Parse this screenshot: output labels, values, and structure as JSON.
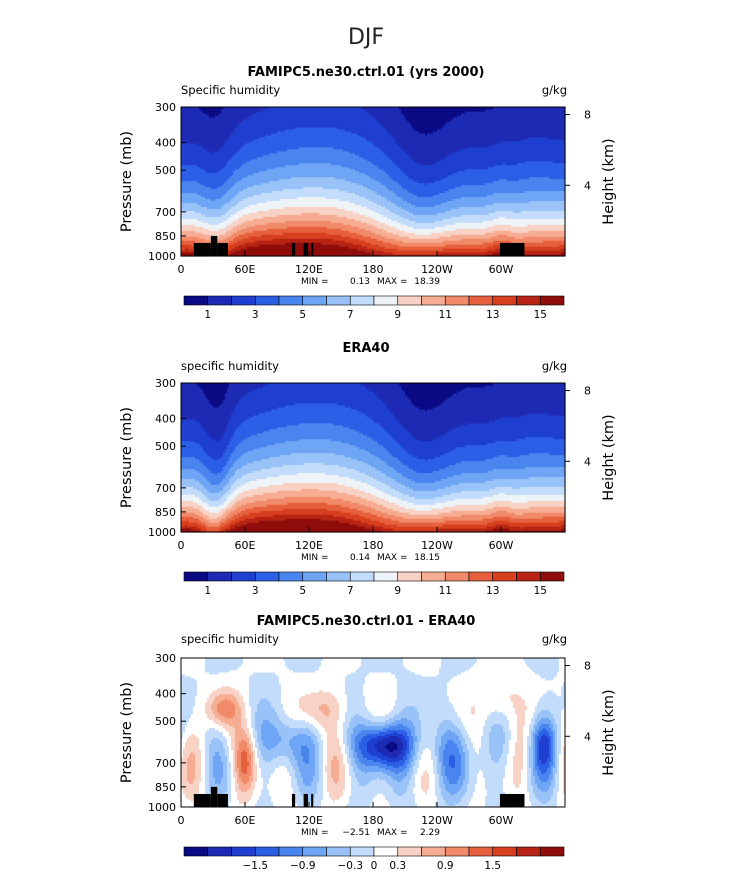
{
  "title": "DJF",
  "colors": {
    "sequential": [
      "#0a0a85",
      "#1c2ab4",
      "#1f3fd0",
      "#2b5fe6",
      "#4a84ef",
      "#6fa5f5",
      "#98c2f8",
      "#c3dcfb",
      "#eef3f8",
      "#f8d2c4",
      "#f6ad93",
      "#f08a68",
      "#e7603d",
      "#d6401f",
      "#b72414",
      "#8f0d0a"
    ],
    "diverging": [
      "#0a0a85",
      "#1c2ab4",
      "#1f3fd0",
      "#2b5fe6",
      "#4a84ef",
      "#6fa5f5",
      "#98c2f8",
      "#c3dcfb",
      "#ffffff",
      "#f8d2c4",
      "#f6ad93",
      "#f08a68",
      "#e7603d",
      "#d6401f",
      "#b72414",
      "#8f0d0a"
    ],
    "topography": "#000000"
  },
  "chart_data": [
    {
      "type": "heatmap",
      "title": "FAMIPC5.ne30.ctrl.01 (yrs 2000)",
      "left_label": "Specific humidity",
      "units": "g/kg",
      "ylabel": "Pressure (mb)",
      "ylabel_right": "Height (km)",
      "xticks": [
        "0",
        "60E",
        "120E",
        "180",
        "120W",
        "60W"
      ],
      "yticks": [
        "300",
        "400",
        "500",
        "700",
        "850",
        "1000"
      ],
      "yticks_right": [
        "8",
        "4"
      ],
      "min_label": "MIN =",
      "min_value": "0.13",
      "max_label": "MAX =",
      "max_value": "18.39",
      "colorbar_labels": [
        "1",
        "3",
        "5",
        "7",
        "9",
        "11",
        "13",
        "15"
      ],
      "levels": [
        1,
        2,
        3,
        4,
        5,
        6,
        7,
        8,
        9,
        10,
        11,
        12,
        13,
        14,
        15
      ],
      "xlim": [
        0,
        360
      ],
      "ylim": [
        1000,
        300
      ],
      "palette": "sequential",
      "field": "climatology",
      "topography": true
    },
    {
      "type": "heatmap",
      "title": "ERA40",
      "left_label": "specific humidity",
      "units": "g/kg",
      "ylabel": "Pressure (mb)",
      "ylabel_right": "Height (km)",
      "xticks": [
        "0",
        "60E",
        "120E",
        "180",
        "120W",
        "60W"
      ],
      "yticks": [
        "300",
        "400",
        "500",
        "700",
        "850",
        "1000"
      ],
      "yticks_right": [
        "8",
        "4"
      ],
      "min_label": "MIN =",
      "min_value": "0.14",
      "max_label": "MAX =",
      "max_value": "18.15",
      "colorbar_labels": [
        "1",
        "3",
        "5",
        "7",
        "9",
        "11",
        "13",
        "15"
      ],
      "levels": [
        1,
        2,
        3,
        4,
        5,
        6,
        7,
        8,
        9,
        10,
        11,
        12,
        13,
        14,
        15
      ],
      "xlim": [
        0,
        360
      ],
      "ylim": [
        1000,
        300
      ],
      "palette": "sequential",
      "field": "climatology",
      "topography": false
    },
    {
      "type": "heatmap",
      "title": "FAMIPC5.ne30.ctrl.01 - ERA40",
      "left_label": "specific humidity",
      "units": "g/kg",
      "ylabel": "Pressure (mb)",
      "ylabel_right": "Height (km)",
      "xticks": [
        "0",
        "60E",
        "120E",
        "180",
        "120W",
        "60W"
      ],
      "yticks": [
        "300",
        "400",
        "500",
        "700",
        "850",
        "1000"
      ],
      "yticks_right": [
        "8",
        "4"
      ],
      "min_label": "MIN =",
      "min_value": "−2.51",
      "max_label": "MAX =",
      "max_value": "2.29",
      "colorbar_labels": [
        "−1.5",
        "−0.9",
        "−0.3",
        "0",
        "0.3",
        "0.9",
        "1.5"
      ],
      "levels": [
        -2.1,
        -1.8,
        -1.5,
        -1.2,
        -0.9,
        -0.6,
        -0.3,
        0,
        0.3,
        0.6,
        0.9,
        1.2,
        1.5,
        1.8,
        2.1
      ],
      "xlim": [
        0,
        360
      ],
      "ylim": [
        1000,
        300
      ],
      "palette": "diverging",
      "field": "difference",
      "topography": true
    }
  ]
}
